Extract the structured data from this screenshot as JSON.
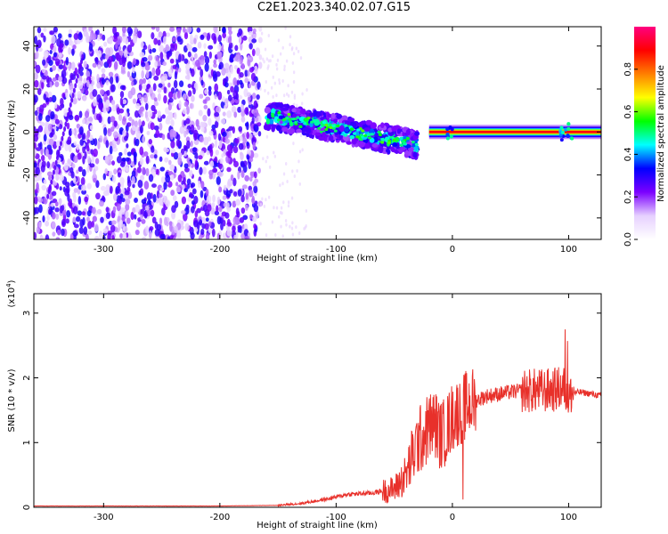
{
  "title": "C2E1.2023.340.02.07.G15",
  "chart_data": [
    {
      "type": "heatmap",
      "title": "C2E1.2023.340.02.07.G15",
      "xlabel": "Height of straight line (km)",
      "ylabel": "Frequency (Hz)",
      "xlim": [
        -360,
        128
      ],
      "ylim": [
        -50,
        49
      ],
      "x_ticks": [
        -300,
        -200,
        -100,
        0,
        100
      ],
      "y_ticks": [
        -40,
        -20,
        0,
        20,
        40
      ],
      "colorbar": {
        "label": "Normalized spectral amplitude",
        "range": [
          0.0,
          1.0
        ],
        "ticks": [
          0.0,
          0.2,
          0.4,
          0.6,
          0.8
        ],
        "colors": [
          "#ffffff",
          "#e6d0ff",
          "#7b00ff",
          "#0000ff",
          "#00ffff",
          "#00ff00",
          "#ffff00",
          "#ff7f00",
          "#ff0000",
          "#ff0080"
        ]
      },
      "features": {
        "noise_region_x": [
          -360,
          -165
        ],
        "track_start": {
          "x": -160,
          "y": 8
        },
        "track_mid": {
          "x": -100,
          "y": 0
        },
        "track_end": {
          "x": -30,
          "y": -6
        },
        "steady_line_from_x": -20,
        "steady_line_freq": 0,
        "steady_line_amplitude": 0.9
      }
    },
    {
      "type": "line",
      "xlabel": "Height of straight line (km)",
      "ylabel": "SNR (10 * v/v)",
      "y_multiplier": "(x10",
      "y_multiplier_exp": "4",
      "y_multiplier_close": ")",
      "xlim": [
        -360,
        128
      ],
      "ylim": [
        0,
        3.3
      ],
      "x_ticks": [
        -300,
        -200,
        -100,
        0,
        100
      ],
      "y_ticks": [
        0,
        1,
        2,
        3
      ],
      "color": "#e8302a",
      "series": [
        {
          "x": [
            -360,
            -300,
            -200,
            -150,
            -130,
            -110,
            -90,
            -70,
            -50,
            -40,
            -35,
            -30,
            -25,
            -20,
            -15,
            -10,
            -5,
            0,
            10,
            20,
            30,
            40,
            50,
            60,
            70,
            80,
            90,
            95,
            100,
            110,
            120,
            128
          ],
          "y": [
            0.02,
            0.02,
            0.02,
            0.03,
            0.06,
            0.12,
            0.2,
            0.22,
            0.28,
            0.5,
            0.75,
            1.0,
            1.1,
            1.25,
            1.3,
            1.1,
            1.2,
            1.4,
            1.55,
            1.65,
            1.72,
            1.75,
            1.78,
            1.8,
            1.8,
            1.8,
            1.82,
            1.85,
            1.75,
            1.78,
            1.75,
            1.72
          ]
        }
      ]
    }
  ]
}
